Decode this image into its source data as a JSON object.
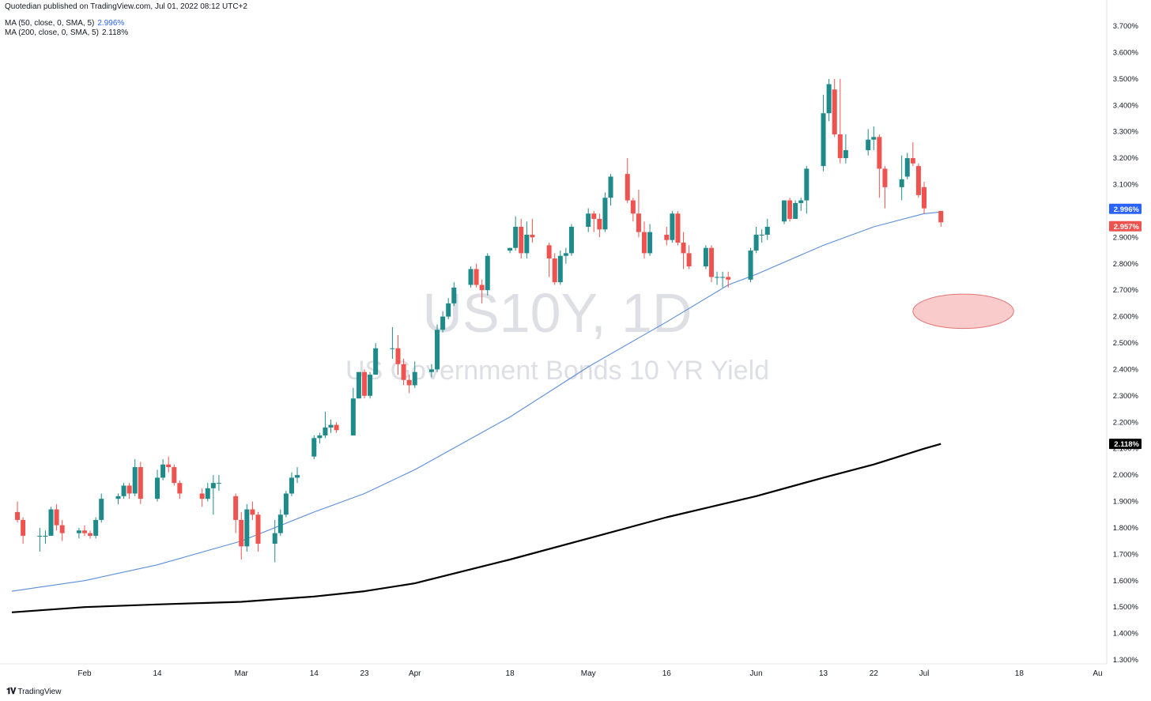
{
  "header": {
    "published": "Quotedian published on TradingView.com, Jul 01, 2022 08:12 UTC+2",
    "ma50_label": "MA (50, close, 0, SMA, 5)",
    "ma50_value": "2.996%",
    "ma200_label": "MA (200, close, 0, SMA, 5)",
    "ma200_value": "2.118%"
  },
  "watermark": {
    "symbol": "US10Y, 1D",
    "description": "US Government Bonds 10 YR Yield"
  },
  "footer": {
    "brand": "TradingView"
  },
  "price_tags": [
    {
      "value": 2.996,
      "label": "2.996%",
      "color": "#2962ff"
    },
    {
      "value": 2.957,
      "label": "2.957%",
      "color": "#ef5350"
    },
    {
      "value": 2.118,
      "label": "2.118%",
      "color": "#000000"
    }
  ],
  "colors": {
    "up": "#26a69a",
    "up_body": "#1f8a8a",
    "down": "#ef5350",
    "ma50": "#5b8ddb",
    "ma200": "#000000"
  },
  "chart_data": {
    "type": "candlestick",
    "ylim": [
      1.3,
      3.7
    ],
    "y_ticks": [
      "1.300%",
      "1.400%",
      "1.500%",
      "1.600%",
      "1.700%",
      "1.800%",
      "1.900%",
      "2.000%",
      "2.100%",
      "2.200%",
      "2.300%",
      "2.400%",
      "2.500%",
      "2.600%",
      "2.700%",
      "2.800%",
      "2.900%",
      "3.000%",
      "3.100%",
      "3.200%",
      "3.300%",
      "3.400%",
      "3.500%",
      "3.600%",
      "3.700%"
    ],
    "x_ticks": [
      {
        "label": "Feb",
        "date": "2022-02-01"
      },
      {
        "label": "14",
        "date": "2022-02-14"
      },
      {
        "label": "Mar",
        "date": "2022-03-01"
      },
      {
        "label": "14",
        "date": "2022-03-14"
      },
      {
        "label": "23",
        "date": "2022-03-23"
      },
      {
        "label": "Apr",
        "date": "2022-04-01"
      },
      {
        "label": "18",
        "date": "2022-04-18"
      },
      {
        "label": "May",
        "date": "2022-05-02"
      },
      {
        "label": "16",
        "date": "2022-05-16"
      },
      {
        "label": "Jun",
        "date": "2022-06-01"
      },
      {
        "label": "13",
        "date": "2022-06-13"
      },
      {
        "label": "22",
        "date": "2022-06-22"
      },
      {
        "label": "Jul",
        "date": "2022-07-01"
      },
      {
        "label": "18",
        "date": "2022-07-18"
      },
      {
        "label": "Au",
        "date": "2022-08-01"
      }
    ],
    "candles": [
      {
        "date": "2022-01-20",
        "o": 1.86,
        "h": 1.9,
        "l": 1.82,
        "c": 1.83
      },
      {
        "date": "2022-01-21",
        "o": 1.83,
        "h": 1.84,
        "l": 1.74,
        "c": 1.77
      },
      {
        "date": "2022-01-24",
        "o": 1.77,
        "h": 1.8,
        "l": 1.71,
        "c": 1.77
      },
      {
        "date": "2022-01-25",
        "o": 1.77,
        "h": 1.79,
        "l": 1.74,
        "c": 1.77
      },
      {
        "date": "2022-01-26",
        "o": 1.77,
        "h": 1.88,
        "l": 1.77,
        "c": 1.87
      },
      {
        "date": "2022-01-27",
        "o": 1.87,
        "h": 1.89,
        "l": 1.79,
        "c": 1.81
      },
      {
        "date": "2022-01-28",
        "o": 1.81,
        "h": 1.83,
        "l": 1.75,
        "c": 1.78
      },
      {
        "date": "2022-01-31",
        "o": 1.78,
        "h": 1.8,
        "l": 1.76,
        "c": 1.79
      },
      {
        "date": "2022-02-01",
        "o": 1.79,
        "h": 1.81,
        "l": 1.77,
        "c": 1.78
      },
      {
        "date": "2022-02-02",
        "o": 1.78,
        "h": 1.79,
        "l": 1.76,
        "c": 1.77
      },
      {
        "date": "2022-02-03",
        "o": 1.77,
        "h": 1.84,
        "l": 1.76,
        "c": 1.83
      },
      {
        "date": "2022-02-04",
        "o": 1.83,
        "h": 1.93,
        "l": 1.82,
        "c": 1.91
      },
      {
        "date": "2022-02-07",
        "o": 1.91,
        "h": 1.93,
        "l": 1.89,
        "c": 1.92
      },
      {
        "date": "2022-02-08",
        "o": 1.92,
        "h": 1.97,
        "l": 1.91,
        "c": 1.96
      },
      {
        "date": "2022-02-09",
        "o": 1.96,
        "h": 1.97,
        "l": 1.91,
        "c": 1.93
      },
      {
        "date": "2022-02-10",
        "o": 1.93,
        "h": 2.06,
        "l": 1.92,
        "c": 2.03
      },
      {
        "date": "2022-02-11",
        "o": 2.03,
        "h": 2.05,
        "l": 1.89,
        "c": 1.91
      },
      {
        "date": "2022-02-14",
        "o": 1.91,
        "h": 2.02,
        "l": 1.9,
        "c": 1.99
      },
      {
        "date": "2022-02-15",
        "o": 1.99,
        "h": 2.06,
        "l": 1.98,
        "c": 2.04
      },
      {
        "date": "2022-02-16",
        "o": 2.04,
        "h": 2.07,
        "l": 2.01,
        "c": 2.03
      },
      {
        "date": "2022-02-17",
        "o": 2.03,
        "h": 2.04,
        "l": 1.96,
        "c": 1.97
      },
      {
        "date": "2022-02-18",
        "o": 1.97,
        "h": 1.98,
        "l": 1.91,
        "c": 1.93
      },
      {
        "date": "2022-02-22",
        "o": 1.93,
        "h": 1.95,
        "l": 1.88,
        "c": 1.91
      },
      {
        "date": "2022-02-23",
        "o": 1.91,
        "h": 1.97,
        "l": 1.9,
        "c": 1.95
      },
      {
        "date": "2022-02-24",
        "o": 1.95,
        "h": 2.0,
        "l": 1.85,
        "c": 1.97
      },
      {
        "date": "2022-02-25",
        "o": 1.97,
        "h": 2.0,
        "l": 1.94,
        "c": 1.97
      },
      {
        "date": "2022-02-28",
        "o": 1.92,
        "h": 1.93,
        "l": 1.78,
        "c": 1.83
      },
      {
        "date": "2022-03-01",
        "o": 1.83,
        "h": 1.86,
        "l": 1.68,
        "c": 1.73
      },
      {
        "date": "2022-03-02",
        "o": 1.73,
        "h": 1.89,
        "l": 1.71,
        "c": 1.87
      },
      {
        "date": "2022-03-03",
        "o": 1.87,
        "h": 1.9,
        "l": 1.83,
        "c": 1.85
      },
      {
        "date": "2022-03-04",
        "o": 1.85,
        "h": 1.86,
        "l": 1.71,
        "c": 1.74
      },
      {
        "date": "2022-03-07",
        "o": 1.74,
        "h": 1.83,
        "l": 1.67,
        "c": 1.78
      },
      {
        "date": "2022-03-08",
        "o": 1.78,
        "h": 1.87,
        "l": 1.77,
        "c": 1.85
      },
      {
        "date": "2022-03-09",
        "o": 1.85,
        "h": 1.94,
        "l": 1.84,
        "c": 1.93
      },
      {
        "date": "2022-03-10",
        "o": 1.93,
        "h": 2.01,
        "l": 1.92,
        "c": 1.99
      },
      {
        "date": "2022-03-11",
        "o": 1.99,
        "h": 2.03,
        "l": 1.97,
        "c": 2.0
      },
      {
        "date": "2022-03-14",
        "o": 2.07,
        "h": 2.15,
        "l": 2.06,
        "c": 2.14
      },
      {
        "date": "2022-03-15",
        "o": 2.14,
        "h": 2.16,
        "l": 2.12,
        "c": 2.15
      },
      {
        "date": "2022-03-16",
        "o": 2.15,
        "h": 2.24,
        "l": 2.14,
        "c": 2.18
      },
      {
        "date": "2022-03-17",
        "o": 2.18,
        "h": 2.21,
        "l": 2.16,
        "c": 2.19
      },
      {
        "date": "2022-03-18",
        "o": 2.19,
        "h": 2.2,
        "l": 2.16,
        "c": 2.17
      },
      {
        "date": "2022-03-21",
        "o": 2.15,
        "h": 2.33,
        "l": 2.15,
        "c": 2.29
      },
      {
        "date": "2022-03-22",
        "o": 2.29,
        "h": 2.39,
        "l": 2.29,
        "c": 2.39
      },
      {
        "date": "2022-03-23",
        "o": 2.39,
        "h": 2.4,
        "l": 2.29,
        "c": 2.3
      },
      {
        "date": "2022-03-24",
        "o": 2.3,
        "h": 2.39,
        "l": 2.29,
        "c": 2.38
      },
      {
        "date": "2022-03-25",
        "o": 2.38,
        "h": 2.5,
        "l": 2.38,
        "c": 2.48
      },
      {
        "date": "2022-03-28",
        "o": 2.48,
        "h": 2.56,
        "l": 2.44,
        "c": 2.48
      },
      {
        "date": "2022-03-29",
        "o": 2.48,
        "h": 2.53,
        "l": 2.38,
        "c": 2.42
      },
      {
        "date": "2022-03-30",
        "o": 2.42,
        "h": 2.44,
        "l": 2.34,
        "c": 2.36
      },
      {
        "date": "2022-03-31",
        "o": 2.36,
        "h": 2.38,
        "l": 2.31,
        "c": 2.34
      },
      {
        "date": "2022-04-01",
        "o": 2.34,
        "h": 2.43,
        "l": 2.33,
        "c": 2.39
      },
      {
        "date": "2022-04-04",
        "o": 2.39,
        "h": 2.42,
        "l": 2.37,
        "c": 2.4
      },
      {
        "date": "2022-04-05",
        "o": 2.4,
        "h": 2.57,
        "l": 2.39,
        "c": 2.55
      },
      {
        "date": "2022-04-06",
        "o": 2.55,
        "h": 2.62,
        "l": 2.54,
        "c": 2.6
      },
      {
        "date": "2022-04-07",
        "o": 2.6,
        "h": 2.67,
        "l": 2.59,
        "c": 2.65
      },
      {
        "date": "2022-04-08",
        "o": 2.65,
        "h": 2.73,
        "l": 2.64,
        "c": 2.71
      },
      {
        "date": "2022-04-11",
        "o": 2.72,
        "h": 2.79,
        "l": 2.71,
        "c": 2.78
      },
      {
        "date": "2022-04-12",
        "o": 2.78,
        "h": 2.8,
        "l": 2.71,
        "c": 2.72
      },
      {
        "date": "2022-04-13",
        "o": 2.72,
        "h": 2.74,
        "l": 2.65,
        "c": 2.7
      },
      {
        "date": "2022-04-14",
        "o": 2.7,
        "h": 2.84,
        "l": 2.68,
        "c": 2.83
      },
      {
        "date": "2022-04-18",
        "o": 2.85,
        "h": 2.86,
        "l": 2.84,
        "c": 2.86
      },
      {
        "date": "2022-04-19",
        "o": 2.86,
        "h": 2.98,
        "l": 2.85,
        "c": 2.94
      },
      {
        "date": "2022-04-20",
        "o": 2.94,
        "h": 2.97,
        "l": 2.82,
        "c": 2.84
      },
      {
        "date": "2022-04-21",
        "o": 2.84,
        "h": 2.96,
        "l": 2.82,
        "c": 2.91
      },
      {
        "date": "2022-04-22",
        "o": 2.91,
        "h": 2.97,
        "l": 2.88,
        "c": 2.9
      },
      {
        "date": "2022-04-25",
        "o": 2.87,
        "h": 2.88,
        "l": 2.75,
        "c": 2.82
      },
      {
        "date": "2022-04-26",
        "o": 2.82,
        "h": 2.84,
        "l": 2.72,
        "c": 2.73
      },
      {
        "date": "2022-04-27",
        "o": 2.73,
        "h": 2.85,
        "l": 2.72,
        "c": 2.83
      },
      {
        "date": "2022-04-28",
        "o": 2.83,
        "h": 2.86,
        "l": 2.8,
        "c": 2.84
      },
      {
        "date": "2022-04-29",
        "o": 2.84,
        "h": 2.95,
        "l": 2.83,
        "c": 2.94
      },
      {
        "date": "2022-05-02",
        "o": 2.94,
        "h": 3.01,
        "l": 2.92,
        "c": 2.99
      },
      {
        "date": "2022-05-03",
        "o": 2.99,
        "h": 3.0,
        "l": 2.92,
        "c": 2.97
      },
      {
        "date": "2022-05-04",
        "o": 2.97,
        "h": 2.99,
        "l": 2.9,
        "c": 2.93
      },
      {
        "date": "2022-05-05",
        "o": 2.93,
        "h": 3.07,
        "l": 2.92,
        "c": 3.05
      },
      {
        "date": "2022-05-06",
        "o": 3.05,
        "h": 3.14,
        "l": 3.02,
        "c": 3.13
      },
      {
        "date": "2022-05-09",
        "o": 3.14,
        "h": 3.2,
        "l": 3.03,
        "c": 3.04
      },
      {
        "date": "2022-05-10",
        "o": 3.04,
        "h": 3.05,
        "l": 2.96,
        "c": 2.99
      },
      {
        "date": "2022-05-11",
        "o": 2.99,
        "h": 3.08,
        "l": 2.9,
        "c": 2.92
      },
      {
        "date": "2022-05-12",
        "o": 2.92,
        "h": 2.96,
        "l": 2.82,
        "c": 2.84
      },
      {
        "date": "2022-05-13",
        "o": 2.84,
        "h": 2.95,
        "l": 2.83,
        "c": 2.92
      },
      {
        "date": "2022-05-16",
        "o": 2.91,
        "h": 2.94,
        "l": 2.87,
        "c": 2.89
      },
      {
        "date": "2022-05-17",
        "o": 2.89,
        "h": 3.0,
        "l": 2.88,
        "c": 2.99
      },
      {
        "date": "2022-05-18",
        "o": 2.99,
        "h": 3.0,
        "l": 2.87,
        "c": 2.88
      },
      {
        "date": "2022-05-19",
        "o": 2.88,
        "h": 2.92,
        "l": 2.78,
        "c": 2.84
      },
      {
        "date": "2022-05-20",
        "o": 2.84,
        "h": 2.87,
        "l": 2.78,
        "c": 2.79
      },
      {
        "date": "2022-05-23",
        "o": 2.79,
        "h": 2.87,
        "l": 2.78,
        "c": 2.86
      },
      {
        "date": "2022-05-24",
        "o": 2.86,
        "h": 2.87,
        "l": 2.73,
        "c": 2.75
      },
      {
        "date": "2022-05-25",
        "o": 2.75,
        "h": 2.77,
        "l": 2.72,
        "c": 2.75
      },
      {
        "date": "2022-05-26",
        "o": 2.75,
        "h": 2.77,
        "l": 2.71,
        "c": 2.75
      },
      {
        "date": "2022-05-27",
        "o": 2.75,
        "h": 2.77,
        "l": 2.71,
        "c": 2.74
      },
      {
        "date": "2022-05-31",
        "o": 2.74,
        "h": 2.86,
        "l": 2.73,
        "c": 2.85
      },
      {
        "date": "2022-06-01",
        "o": 2.85,
        "h": 2.94,
        "l": 2.84,
        "c": 2.91
      },
      {
        "date": "2022-06-02",
        "o": 2.91,
        "h": 2.93,
        "l": 2.88,
        "c": 2.91
      },
      {
        "date": "2022-06-03",
        "o": 2.91,
        "h": 2.97,
        "l": 2.89,
        "c": 2.94
      },
      {
        "date": "2022-06-06",
        "o": 2.96,
        "h": 3.04,
        "l": 2.95,
        "c": 3.04
      },
      {
        "date": "2022-06-07",
        "o": 3.04,
        "h": 3.05,
        "l": 2.96,
        "c": 2.97
      },
      {
        "date": "2022-06-08",
        "o": 2.97,
        "h": 3.04,
        "l": 2.97,
        "c": 3.03
      },
      {
        "date": "2022-06-09",
        "o": 3.03,
        "h": 3.05,
        "l": 3.0,
        "c": 3.04
      },
      {
        "date": "2022-06-10",
        "o": 3.04,
        "h": 3.17,
        "l": 2.99,
        "c": 3.16
      },
      {
        "date": "2022-06-13",
        "o": 3.17,
        "h": 3.44,
        "l": 3.15,
        "c": 3.37
      },
      {
        "date": "2022-06-14",
        "o": 3.37,
        "h": 3.5,
        "l": 3.34,
        "c": 3.48
      },
      {
        "date": "2022-06-15",
        "o": 3.46,
        "h": 3.5,
        "l": 3.28,
        "c": 3.29
      },
      {
        "date": "2022-06-16",
        "o": 3.29,
        "h": 3.5,
        "l": 3.18,
        "c": 3.2
      },
      {
        "date": "2022-06-17",
        "o": 3.2,
        "h": 3.29,
        "l": 3.18,
        "c": 3.23
      },
      {
        "date": "2022-06-21",
        "o": 3.23,
        "h": 3.31,
        "l": 3.21,
        "c": 3.27
      },
      {
        "date": "2022-06-22",
        "o": 3.27,
        "h": 3.32,
        "l": 3.23,
        "c": 3.28
      },
      {
        "date": "2022-06-23",
        "o": 3.28,
        "h": 3.29,
        "l": 3.05,
        "c": 3.16
      },
      {
        "date": "2022-06-24",
        "o": 3.16,
        "h": 3.17,
        "l": 3.01,
        "c": 3.09
      },
      {
        "date": "2022-06-27",
        "o": 3.09,
        "h": 3.21,
        "l": 3.04,
        "c": 3.12
      },
      {
        "date": "2022-06-28",
        "o": 3.13,
        "h": 3.22,
        "l": 3.12,
        "c": 3.2
      },
      {
        "date": "2022-06-29",
        "o": 3.2,
        "h": 3.26,
        "l": 3.17,
        "c": 3.18
      },
      {
        "date": "2022-06-30",
        "o": 3.17,
        "h": 3.18,
        "l": 3.05,
        "c": 3.06
      },
      {
        "date": "2022-07-01",
        "o": 3.09,
        "h": 3.11,
        "l": 2.99,
        "c": 3.01
      },
      {
        "date": "2022-07-04",
        "o": 3.0,
        "h": 3.0,
        "l": 2.94,
        "c": 2.957
      }
    ],
    "ma50": [
      {
        "date": "2022-01-19",
        "v": 1.56
      },
      {
        "date": "2022-02-01",
        "v": 1.6
      },
      {
        "date": "2022-02-14",
        "v": 1.66
      },
      {
        "date": "2022-03-01",
        "v": 1.75
      },
      {
        "date": "2022-03-14",
        "v": 1.86
      },
      {
        "date": "2022-03-23",
        "v": 1.93
      },
      {
        "date": "2022-04-01",
        "v": 2.02
      },
      {
        "date": "2022-04-18",
        "v": 2.22
      },
      {
        "date": "2022-05-02",
        "v": 2.41
      },
      {
        "date": "2022-05-16",
        "v": 2.58
      },
      {
        "date": "2022-05-27",
        "v": 2.72
      },
      {
        "date": "2022-06-01",
        "v": 2.76
      },
      {
        "date": "2022-06-13",
        "v": 2.87
      },
      {
        "date": "2022-06-22",
        "v": 2.94
      },
      {
        "date": "2022-07-01",
        "v": 2.99
      },
      {
        "date": "2022-07-04",
        "v": 2.996
      }
    ],
    "ma200": [
      {
        "date": "2022-01-19",
        "v": 1.48
      },
      {
        "date": "2022-02-01",
        "v": 1.5
      },
      {
        "date": "2022-02-14",
        "v": 1.51
      },
      {
        "date": "2022-03-01",
        "v": 1.52
      },
      {
        "date": "2022-03-14",
        "v": 1.54
      },
      {
        "date": "2022-03-23",
        "v": 1.56
      },
      {
        "date": "2022-04-01",
        "v": 1.59
      },
      {
        "date": "2022-04-18",
        "v": 1.68
      },
      {
        "date": "2022-05-02",
        "v": 1.76
      },
      {
        "date": "2022-05-16",
        "v": 1.84
      },
      {
        "date": "2022-06-01",
        "v": 1.92
      },
      {
        "date": "2022-06-13",
        "v": 1.99
      },
      {
        "date": "2022-06-22",
        "v": 2.04
      },
      {
        "date": "2022-07-01",
        "v": 2.1
      },
      {
        "date": "2022-07-04",
        "v": 2.118
      }
    ],
    "annotation": {
      "type": "ellipse",
      "center_date": "2022-07-08",
      "center_value": 2.62,
      "date_span_days": 9,
      "value_span": 0.13,
      "color": "#f5a9a9"
    }
  }
}
